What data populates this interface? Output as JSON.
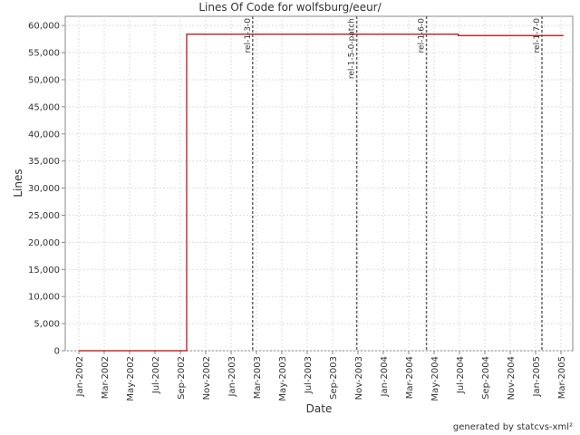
{
  "chart_data": {
    "type": "line",
    "title": "Lines Of Code for wolfsburg/eeur/",
    "x_label": "Date",
    "y_label": "Lines",
    "footer": "generated by statcvs-xml²",
    "x": [
      0,
      8.5,
      8.5,
      29.9,
      29.9,
      38.2
    ],
    "values": [
      0,
      0,
      58400,
      58400,
      58150,
      58150
    ],
    "color": "#c00000",
    "xlim": [
      -1.07,
      38.93
    ],
    "xticks": [
      {
        "value": 0,
        "label": "Jan-2002"
      },
      {
        "value": 2,
        "label": "Mar-2002"
      },
      {
        "value": 4,
        "label": "May-2002"
      },
      {
        "value": 6,
        "label": "Jul-2002"
      },
      {
        "value": 8,
        "label": "Sep-2002"
      },
      {
        "value": 10,
        "label": "Nov-2002"
      },
      {
        "value": 12,
        "label": "Jan-2003"
      },
      {
        "value": 14,
        "label": "Mar-2003"
      },
      {
        "value": 16,
        "label": "May-2003"
      },
      {
        "value": 18,
        "label": "Jul-2003"
      },
      {
        "value": 20,
        "label": "Sep-2003"
      },
      {
        "value": 22,
        "label": "Nov-2003"
      },
      {
        "value": 24,
        "label": "Jan-2004"
      },
      {
        "value": 26,
        "label": "Mar-2004"
      },
      {
        "value": 28,
        "label": "May-2004"
      },
      {
        "value": 30,
        "label": "Jul-2004"
      },
      {
        "value": 32,
        "label": "Sep-2004"
      },
      {
        "value": 34,
        "label": "Nov-2004"
      },
      {
        "value": 36,
        "label": "Jan-2005"
      },
      {
        "value": 38,
        "label": "Mar-2005"
      }
    ],
    "ylim": [
      0,
      61700
    ],
    "yticks": [
      0,
      {
        "value": 5000,
        "label": "5,000"
      },
      {
        "value": 10000,
        "label": "10,000"
      },
      {
        "value": 15000,
        "label": "15,000"
      },
      {
        "value": 20000,
        "label": "20,000"
      },
      {
        "value": 25000,
        "label": "25,000"
      },
      {
        "value": 30000,
        "label": "30,000"
      },
      {
        "value": 35000,
        "label": "35,000"
      },
      {
        "value": 40000,
        "label": "40,000"
      },
      {
        "value": 45000,
        "label": "45,000"
      },
      {
        "value": 50000,
        "label": "50,000"
      },
      {
        "value": 55000,
        "label": "55,000"
      },
      {
        "value": 60000,
        "label": "60,000"
      }
    ],
    "grid": true,
    "annotations": [
      {
        "label": "rel-1-3-0",
        "x": 13.7
      },
      {
        "label": "rel-1-5-0-patch",
        "x": 21.9
      },
      {
        "label": "rel-1-6-0",
        "x": 27.4
      },
      {
        "label": "rel-1-7-0",
        "x": 36.5
      }
    ]
  }
}
